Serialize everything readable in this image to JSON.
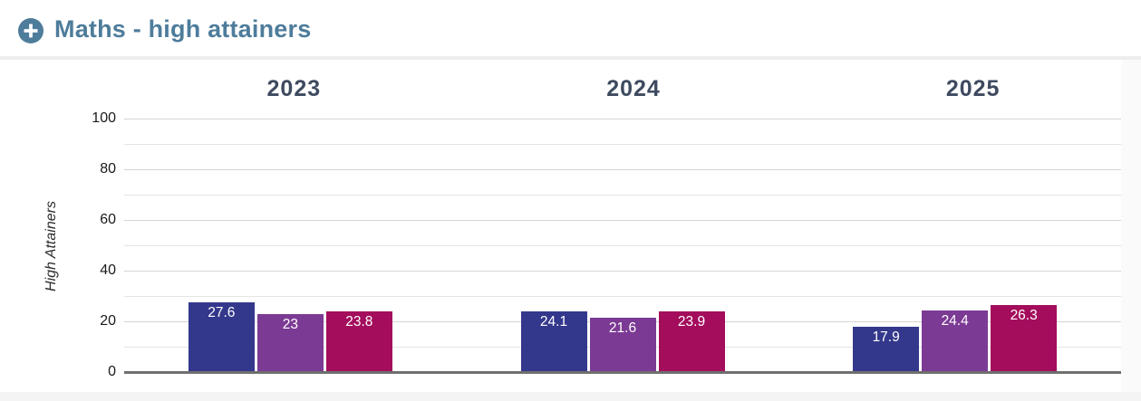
{
  "header": {
    "title": "Maths - high attainers",
    "expand_icon": "plus-circle-icon"
  },
  "colors": {
    "title": "#4E7C9B",
    "category_header": "#3E4A5F",
    "axis_line": "#6F6F6F",
    "gridline_major": "#D4D4D4",
    "gridline_minor": "#E4E4E4",
    "tick_label": "#1A1A1A",
    "value_label": "#FFFFFF",
    "bar_dark_blue": "#33388C",
    "bar_purple": "#7B3A94",
    "bar_crimson": "#A30D5C"
  },
  "chart_data": {
    "type": "bar",
    "title": "Maths - high attainers",
    "xlabel": "",
    "ylabel": "High Attainers",
    "ylim": [
      0,
      100
    ],
    "yticks": [
      0,
      20,
      40,
      60,
      80,
      100
    ],
    "gridline_interval": 10,
    "grid": true,
    "legend": "none",
    "categories": [
      "2023",
      "2024",
      "2025"
    ],
    "series": [
      {
        "name": "dark-blue",
        "color": "#33388C",
        "values": [
          27.6,
          24.1,
          17.9
        ]
      },
      {
        "name": "purple",
        "color": "#7B3A94",
        "values": [
          23,
          21.6,
          24.4
        ]
      },
      {
        "name": "crimson",
        "color": "#A30D5C",
        "values": [
          23.8,
          23.9,
          26.3
        ]
      }
    ],
    "value_labels": true
  }
}
